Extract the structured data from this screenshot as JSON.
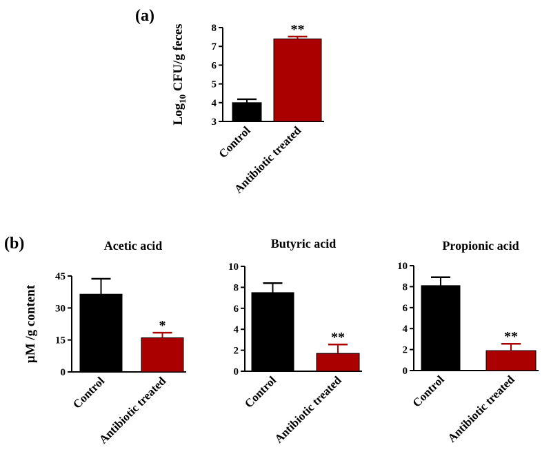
{
  "figure": {
    "panel_a_label": "(a)",
    "panel_b_label": "(b)"
  },
  "chart_data": [
    {
      "type": "bar",
      "title": "",
      "xlabel": "",
      "ylabel": "Log10 CFU/g feces",
      "ylabel_parts": {
        "pre": "Log",
        "sub": "10",
        "post": " CFU/g feces"
      },
      "categories": [
        "Control",
        "Antibiotic treated"
      ],
      "values": [
        4.0,
        7.4
      ],
      "errors": [
        0.18,
        0.12
      ],
      "significance": [
        "",
        "**"
      ],
      "colors": [
        "#000000",
        "#aa0000"
      ],
      "ylim": [
        3,
        8
      ],
      "yticks": [
        3,
        4,
        5,
        6,
        7,
        8
      ],
      "grid": false
    },
    {
      "type": "bar",
      "title": "Acetic acid",
      "xlabel": "",
      "ylabel": "μM /g content",
      "categories": [
        "Control",
        "Antibiotic treated"
      ],
      "values": [
        36.5,
        16.0
      ],
      "errors": [
        7.2,
        2.4
      ],
      "significance": [
        "",
        "*"
      ],
      "colors": [
        "#000000",
        "#aa0000"
      ],
      "ylim": [
        0,
        45
      ],
      "yticks": [
        0,
        15,
        30,
        45
      ],
      "grid": false
    },
    {
      "type": "bar",
      "title": "Butyric acid",
      "xlabel": "",
      "ylabel": "",
      "categories": [
        "Control",
        "Antibiotic treated"
      ],
      "values": [
        7.5,
        1.7
      ],
      "errors": [
        0.9,
        0.85
      ],
      "significance": [
        "",
        "**"
      ],
      "colors": [
        "#000000",
        "#aa0000"
      ],
      "ylim": [
        0,
        10
      ],
      "yticks": [
        0,
        2,
        4,
        6,
        8,
        10
      ],
      "grid": false
    },
    {
      "type": "bar",
      "title": "Propionic acid",
      "xlabel": "",
      "ylabel": "",
      "categories": [
        "Control",
        "Antibiotic treated"
      ],
      "values": [
        8.1,
        1.9
      ],
      "errors": [
        0.8,
        0.65
      ],
      "significance": [
        "",
        "**"
      ],
      "colors": [
        "#000000",
        "#aa0000"
      ],
      "ylim": [
        0,
        10
      ],
      "yticks": [
        0,
        2,
        4,
        6,
        8,
        10
      ],
      "grid": false
    }
  ]
}
